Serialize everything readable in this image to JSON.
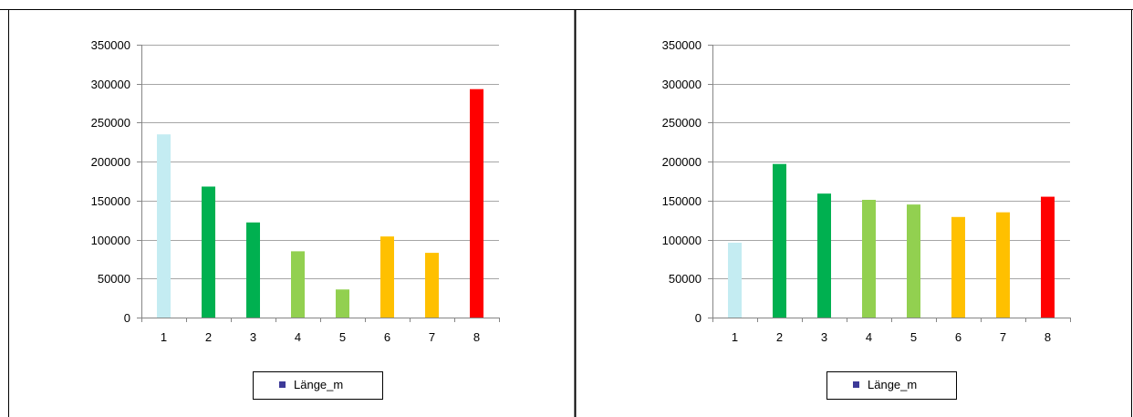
{
  "colors": {
    "cyan": "#c4ecf2",
    "dark_green": "#00b050",
    "light_green": "#92d050",
    "yellow": "#ffc000",
    "red": "#ff0000",
    "legend_marker": "#3d3a98",
    "grid": "#a6a6a6",
    "axis": "#868686",
    "frame": "#000000"
  },
  "chart_data": [
    {
      "type": "bar",
      "categories": [
        "1",
        "2",
        "3",
        "4",
        "5",
        "6",
        "7",
        "8"
      ],
      "series": [
        {
          "name": "Länge_m",
          "values": [
            235000,
            168000,
            122000,
            85000,
            36000,
            104000,
            83000,
            293000
          ],
          "bar_colors": [
            "cyan",
            "dark_green",
            "dark_green",
            "light_green",
            "light_green",
            "yellow",
            "yellow",
            "red"
          ]
        }
      ],
      "y_ticks": [
        "0",
        "50000",
        "100000",
        "150000",
        "200000",
        "250000",
        "300000",
        "350000"
      ],
      "ylim": [
        0,
        350000
      ],
      "grid": true,
      "legend": {
        "placement": "bottom",
        "label": "Länge_m"
      }
    },
    {
      "type": "bar",
      "categories": [
        "1",
        "2",
        "3",
        "4",
        "5",
        "6",
        "7",
        "8"
      ],
      "series": [
        {
          "name": "Länge_m",
          "values": [
            96000,
            197000,
            159000,
            151000,
            145000,
            129000,
            135000,
            155000
          ],
          "bar_colors": [
            "cyan",
            "dark_green",
            "dark_green",
            "light_green",
            "light_green",
            "yellow",
            "yellow",
            "red"
          ]
        }
      ],
      "y_ticks": [
        "0",
        "50000",
        "100000",
        "150000",
        "200000",
        "250000",
        "300000",
        "350000"
      ],
      "ylim": [
        0,
        350000
      ],
      "grid": true,
      "legend": {
        "placement": "bottom",
        "label": "Länge_m"
      }
    }
  ]
}
